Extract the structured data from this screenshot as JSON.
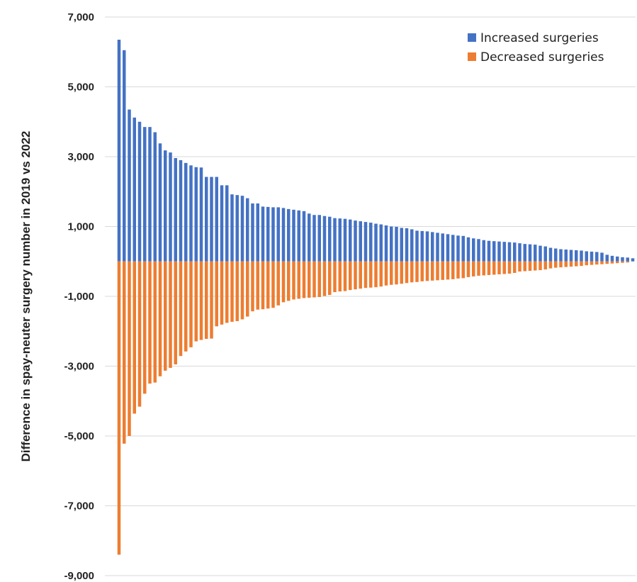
{
  "chart_data": {
    "type": "bar",
    "ylabel": "Difference in spay-neuter surgery number in 2019 vs 2022",
    "xlabel": "",
    "ylim": [
      -9000,
      7000
    ],
    "yticks": [
      7000,
      5000,
      3000,
      1000,
      -1000,
      -3000,
      -5000,
      -7000,
      -9000
    ],
    "ytick_labels": [
      "7,000",
      "5,000",
      "3,000",
      "1,000",
      "-1,000",
      "-3,000",
      "-5,000",
      "-7,000",
      "-9,000"
    ],
    "grid": true,
    "legend_position": "top-right",
    "series": [
      {
        "name": "Increased surgeries",
        "color": "#4472C4",
        "values": [
          6350,
          6050,
          4350,
          4120,
          4000,
          3850,
          3850,
          3700,
          3380,
          3180,
          3120,
          2960,
          2900,
          2820,
          2750,
          2700,
          2690,
          2420,
          2420,
          2420,
          2180,
          2180,
          1920,
          1900,
          1880,
          1810,
          1660,
          1660,
          1570,
          1560,
          1550,
          1550,
          1530,
          1500,
          1480,
          1460,
          1440,
          1370,
          1330,
          1330,
          1300,
          1280,
          1240,
          1230,
          1220,
          1200,
          1170,
          1150,
          1130,
          1110,
          1080,
          1060,
          1030,
          1000,
          990,
          960,
          950,
          920,
          880,
          870,
          860,
          840,
          820,
          800,
          780,
          760,
          740,
          730,
          690,
          660,
          640,
          610,
          590,
          580,
          570,
          560,
          550,
          540,
          520,
          500,
          490,
          480,
          450,
          430,
          390,
          370,
          350,
          340,
          330,
          320,
          310,
          290,
          280,
          270,
          250,
          190,
          160,
          140,
          120,
          110,
          90
        ]
      },
      {
        "name": "Decreased surgeries",
        "color": "#ED7D31",
        "values": [
          -8400,
          -5220,
          -5000,
          -4360,
          -4160,
          -3790,
          -3500,
          -3470,
          -3290,
          -3130,
          -3050,
          -2950,
          -2710,
          -2580,
          -2460,
          -2290,
          -2250,
          -2220,
          -2210,
          -1860,
          -1810,
          -1760,
          -1730,
          -1710,
          -1660,
          -1580,
          -1430,
          -1380,
          -1370,
          -1350,
          -1330,
          -1260,
          -1170,
          -1130,
          -1090,
          -1070,
          -1050,
          -1040,
          -1030,
          -1020,
          -990,
          -960,
          -880,
          -860,
          -850,
          -820,
          -800,
          -780,
          -760,
          -750,
          -740,
          -720,
          -690,
          -670,
          -660,
          -640,
          -620,
          -600,
          -590,
          -570,
          -560,
          -550,
          -540,
          -530,
          -520,
          -510,
          -490,
          -480,
          -450,
          -430,
          -410,
          -400,
          -390,
          -380,
          -370,
          -360,
          -350,
          -330,
          -290,
          -280,
          -270,
          -260,
          -250,
          -230,
          -200,
          -180,
          -170,
          -160,
          -150,
          -140,
          -130,
          -110,
          -100,
          -90,
          -80,
          -70,
          -60,
          -50,
          -40,
          -30
        ]
      }
    ]
  }
}
